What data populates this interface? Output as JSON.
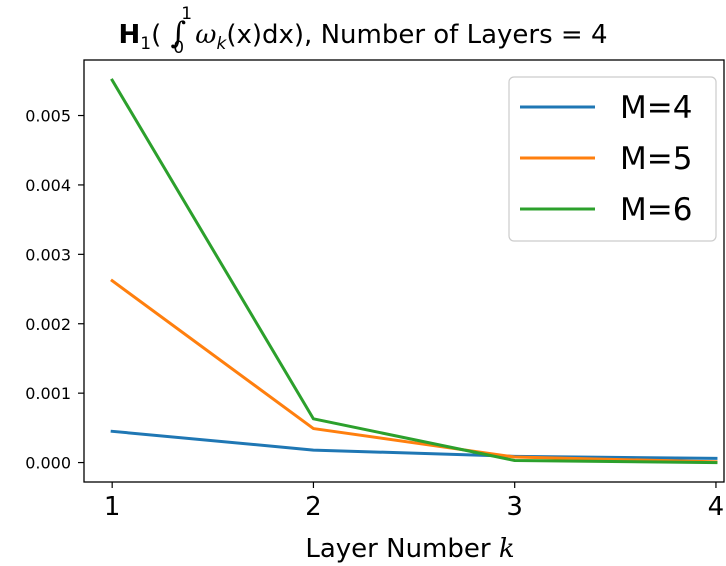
{
  "chart_data": {
    "type": "line",
    "title_prefix": "H",
    "title_prefix_sub": "1",
    "title_integral_upper": "1",
    "title_integral_lower": "0",
    "title_integrand": "ω",
    "title_integrand_sub": "k",
    "title_integrand_rest": "(x)dx),",
    "title_suffix": "Number of Layers = 4",
    "xlabel": "Layer Number k",
    "ylabel": "",
    "x": [
      1,
      2,
      3,
      4
    ],
    "xlim": [
      0.86,
      4.04
    ],
    "ylim": [
      -0.00028,
      0.0058
    ],
    "xticks": [
      1,
      2,
      3,
      4
    ],
    "yticks": [
      0.0,
      0.001,
      0.002,
      0.003,
      0.004,
      0.005
    ],
    "ytick_labels": [
      "0.000",
      "0.001",
      "0.002",
      "0.003",
      "0.004",
      "0.005"
    ],
    "xtick_labels": [
      "1",
      "2",
      "3",
      "4"
    ],
    "legend_position": "top-right",
    "series": [
      {
        "name": "M=4",
        "color": "#1f77b4",
        "values": [
          0.00045,
          0.00018,
          9e-05,
          6e-05
        ]
      },
      {
        "name": "M=5",
        "color": "#ff7f0e",
        "values": [
          0.00262,
          0.00049,
          8e-05,
          1e-05
        ]
      },
      {
        "name": "M=6",
        "color": "#2ca02c",
        "values": [
          0.00551,
          0.00063,
          3e-05,
          0.0
        ]
      }
    ]
  }
}
